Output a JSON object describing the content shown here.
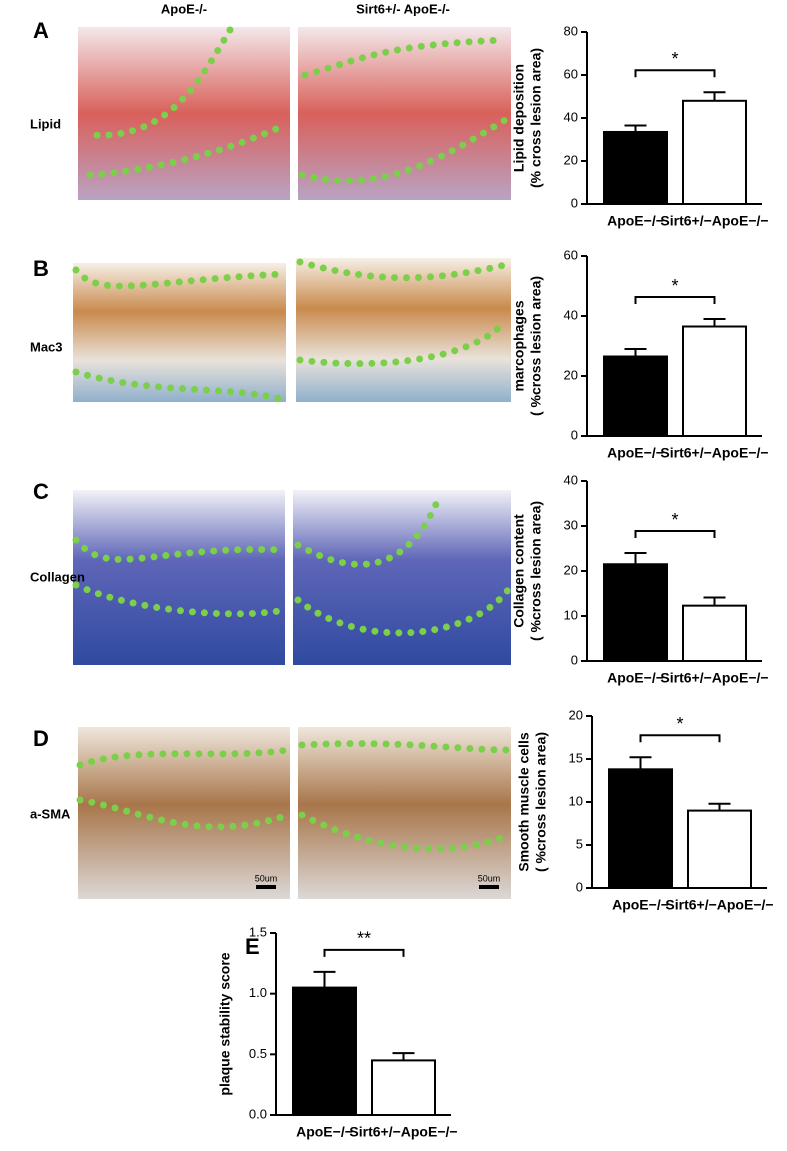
{
  "figure": {
    "column_headers": [
      "ApoE-/-",
      "Sirt6+/- ApoE-/-"
    ],
    "row_labels": [
      "Lipid",
      "Mac3",
      "Collagen",
      "a-SMA"
    ],
    "scale_bars": [
      "50um",
      "50um"
    ]
  },
  "chart_data": [
    {
      "type": "bar",
      "label": "A",
      "ylabel": [
        "Lipid deposition",
        "(% cross lesion area)"
      ],
      "categories": [
        "ApoE−/−",
        "Sirt6+/−ApoE−/−"
      ],
      "values": [
        33.5,
        48
      ],
      "errors": [
        3,
        4
      ],
      "colors": [
        "#000000",
        "#ffffff"
      ],
      "ylim": [
        0,
        80
      ],
      "yticks": [
        0,
        20,
        40,
        60,
        80
      ],
      "significance": "*"
    },
    {
      "type": "bar",
      "label": "B",
      "ylabel": [
        "marcophages",
        "( %cross lesion area)"
      ],
      "categories": [
        "ApoE−/−",
        "Sirt6+/−ApoE−/−"
      ],
      "values": [
        26.5,
        36.5
      ],
      "errors": [
        2.5,
        2.5
      ],
      "colors": [
        "#000000",
        "#ffffff"
      ],
      "ylim": [
        0,
        60
      ],
      "yticks": [
        0,
        20,
        40,
        60
      ],
      "significance": "*"
    },
    {
      "type": "bar",
      "label": "C",
      "ylabel": [
        "Collagen content",
        "( %cross lesion area)"
      ],
      "categories": [
        "ApoE−/−",
        "Sirt6+/−ApoE−/−"
      ],
      "values": [
        21.5,
        12.3
      ],
      "errors": [
        2.5,
        1.8
      ],
      "colors": [
        "#000000",
        "#ffffff"
      ],
      "ylim": [
        0,
        40
      ],
      "yticks": [
        0,
        10,
        20,
        30,
        40
      ],
      "significance": "*"
    },
    {
      "type": "bar",
      "label": "D",
      "ylabel": [
        "Smooth muscle cells",
        "( %cross lesion area)"
      ],
      "categories": [
        "ApoE−/−",
        "Sirt6+/−ApoE−/−"
      ],
      "values": [
        13.8,
        9
      ],
      "errors": [
        1.4,
        0.8
      ],
      "colors": [
        "#000000",
        "#ffffff"
      ],
      "ylim": [
        0,
        20
      ],
      "yticks": [
        0,
        5,
        10,
        15,
        20
      ],
      "significance": "*"
    },
    {
      "type": "bar",
      "label": "E",
      "ylabel": [
        "plaque stability score"
      ],
      "categories": [
        "ApoE−/−",
        "Sirt6+/−ApoE−/−"
      ],
      "values": [
        1.05,
        0.45
      ],
      "errors": [
        0.13,
        0.06
      ],
      "colors": [
        "#000000",
        "#ffffff"
      ],
      "ylim": [
        0,
        1.5
      ],
      "yticks": [
        {
          "value": 0,
          "label": "0.0"
        },
        0.5,
        {
          "value": 1,
          "label": "1.0"
        },
        1.5
      ],
      "significance": "**"
    }
  ]
}
